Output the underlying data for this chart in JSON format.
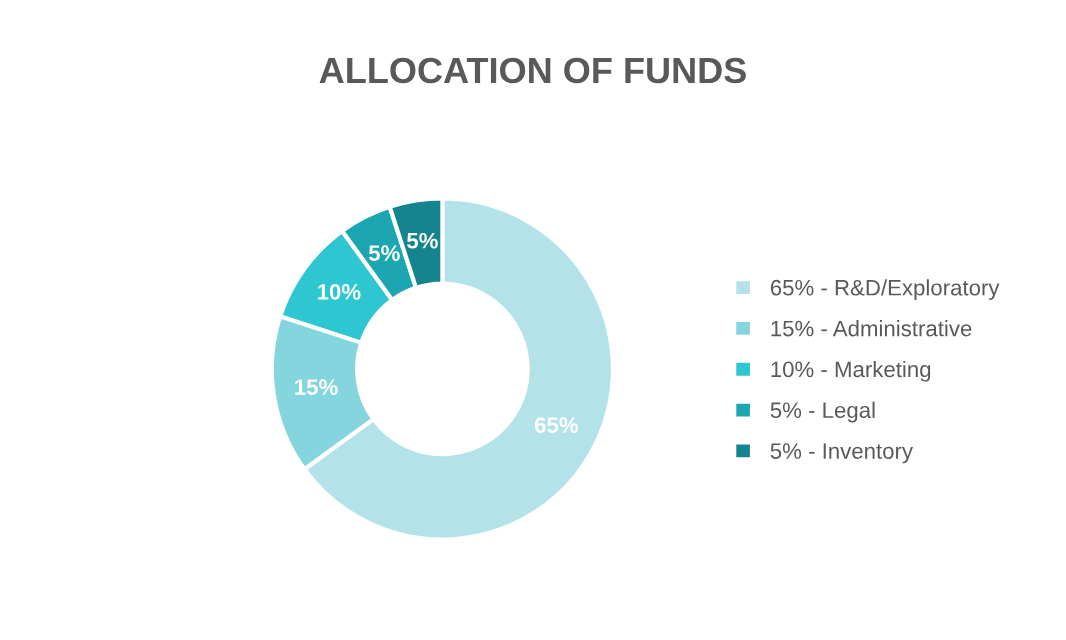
{
  "chart_data": {
    "type": "donut",
    "title": "ALLOCATION OF FUNDS",
    "categories": [
      "65% - R&D/Exploratory",
      "15% - Administrative",
      "10% - Marketing",
      "5% - Legal",
      "5% - Inventory"
    ],
    "values": [
      65,
      15,
      10,
      5,
      5
    ],
    "value_labels": [
      "65%",
      "15%",
      "10%",
      "5%",
      "5%"
    ],
    "colors": [
      "#b3e3e8",
      "#85d5de",
      "#2ec6d0",
      "#1ba6b1",
      "#14858e"
    ],
    "legend": "right"
  }
}
